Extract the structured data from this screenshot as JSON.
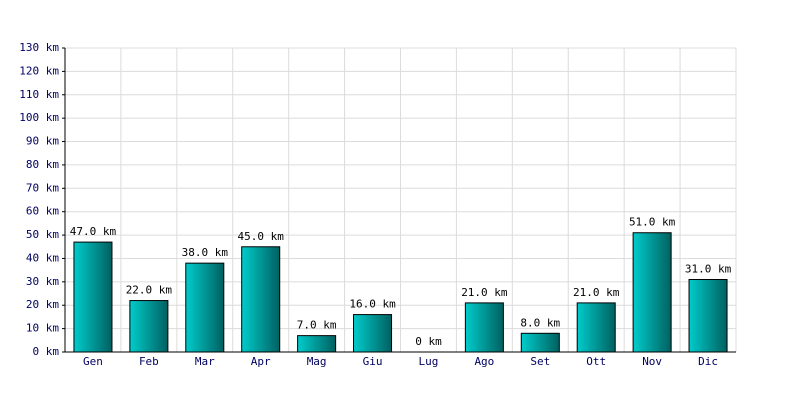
{
  "chart_data": {
    "type": "bar",
    "categories": [
      "Gen",
      "Feb",
      "Mar",
      "Apr",
      "Mag",
      "Giu",
      "Lug",
      "Ago",
      "Set",
      "Ott",
      "Nov",
      "Dic"
    ],
    "values": [
      47,
      22,
      38,
      45,
      7,
      16,
      0,
      21,
      8,
      21,
      51,
      31
    ],
    "value_labels": [
      "47.0 km",
      "22.0 km",
      "38.0 km",
      "45.0 km",
      "7.0 km",
      "16.0 km",
      "0 km",
      "21.0 km",
      "8.0 km",
      "21.0 km",
      "51.0 km",
      "31.0 km"
    ],
    "color": "#00cccc",
    "ylim": [
      0,
      130
    ],
    "yticks": [
      {
        "value": 0,
        "label": "0 km"
      },
      {
        "value": 10,
        "label": "10 km"
      },
      {
        "value": 20,
        "label": "20 km"
      },
      {
        "value": 30,
        "label": "30 km"
      },
      {
        "value": 40,
        "label": "40 km"
      },
      {
        "value": 50,
        "label": "50 km"
      },
      {
        "value": 60,
        "label": "60 km"
      },
      {
        "value": 70,
        "label": "70 km"
      },
      {
        "value": 80,
        "label": "80 km"
      },
      {
        "value": 90,
        "label": "90 km"
      },
      {
        "value": 100,
        "label": "100 km"
      },
      {
        "value": 110,
        "label": "110 km"
      },
      {
        "value": 120,
        "label": "120 km"
      },
      {
        "value": 130,
        "label": "130 km"
      }
    ],
    "grid": true
  }
}
